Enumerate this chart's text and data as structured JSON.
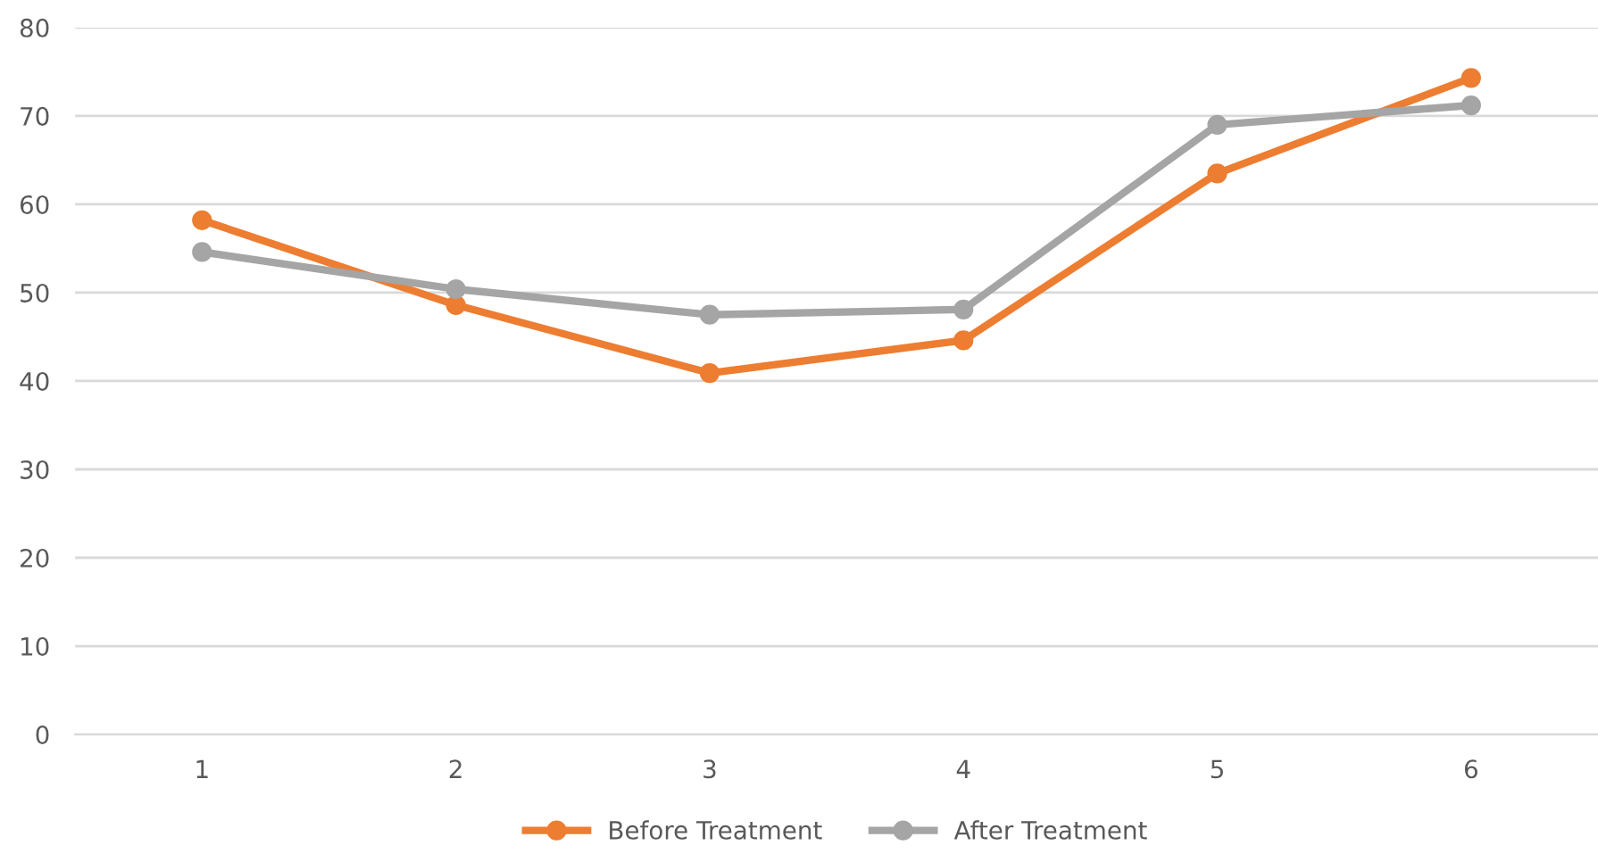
{
  "chart_data": {
    "type": "line",
    "categories": [
      "1",
      "2",
      "3",
      "4",
      "5",
      "6"
    ],
    "series": [
      {
        "name": "Before Treatment",
        "color": "#ed7d31",
        "values": [
          58.2,
          48.6,
          40.9,
          44.6,
          63.5,
          74.3
        ]
      },
      {
        "name": "After Treatment",
        "color": "#a5a5a5",
        "values": [
          54.6,
          50.4,
          47.5,
          48.1,
          69.0,
          71.2
        ]
      }
    ],
    "ylim": [
      0,
      80
    ],
    "yticks": [
      0,
      10,
      20,
      30,
      40,
      50,
      60,
      70,
      80
    ],
    "grid": "y",
    "legend": "bottom",
    "marker": "circle",
    "line_style": "solid"
  }
}
